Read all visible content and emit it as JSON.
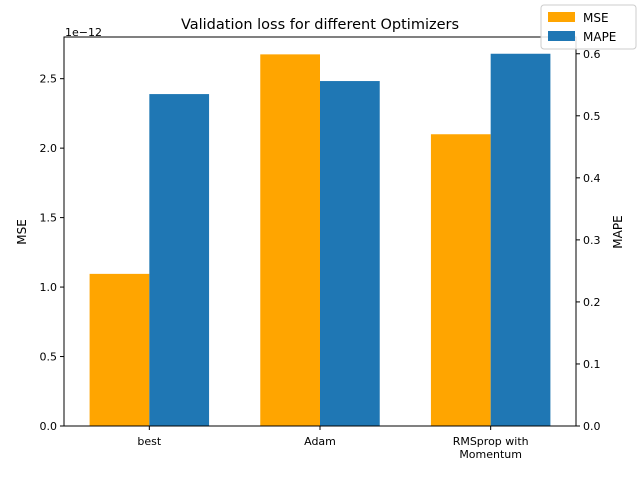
{
  "chart_data": {
    "type": "bar",
    "title": "Validation loss for different Optimizers",
    "categories": [
      "best",
      "Adam",
      "RMSprop with\nMomentum"
    ],
    "series": [
      {
        "name": "MSE",
        "axis": "left",
        "color": "#ffa500",
        "values": [
          1.095e-12,
          2.675e-12,
          2.1e-12
        ]
      },
      {
        "name": "MAPE",
        "axis": "right",
        "color": "#1f77b4",
        "values": [
          0.535,
          0.556,
          0.6
        ]
      }
    ],
    "y_left": {
      "label": "MSE",
      "multiplier": "1e−12",
      "ylim": [
        0,
        2.8
      ],
      "ticks": [
        0.0,
        0.5,
        1.0,
        1.5,
        2.0,
        2.5
      ],
      "tick_labels": [
        "0.0",
        "0.5",
        "1.0",
        "1.5",
        "2.0",
        "2.5"
      ]
    },
    "y_right": {
      "label": "MAPE",
      "ylim": [
        0,
        0.627
      ],
      "ticks": [
        0.0,
        0.1,
        0.2,
        0.3,
        0.4,
        0.5,
        0.6
      ],
      "tick_labels": [
        "0.0",
        "0.1",
        "0.2",
        "0.3",
        "0.4",
        "0.5",
        "0.6"
      ]
    },
    "xlabel": "",
    "grid": false,
    "legend": {
      "position": "top-right",
      "entries": [
        "MSE",
        "MAPE"
      ]
    }
  }
}
